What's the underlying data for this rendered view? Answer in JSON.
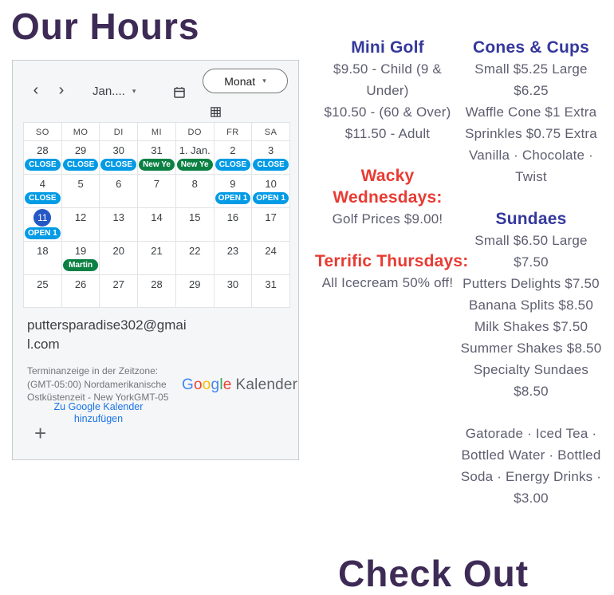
{
  "page": {
    "title": "Our Hours",
    "bottom_heading": "Check Out"
  },
  "colors": {
    "title_color": "#3d2b56",
    "heading_navy": "#34389b",
    "accent_red": "#e83b33",
    "body_text": "#5e5e70",
    "link_blue": "#1a73e8",
    "today_blue": "#2458c5",
    "chip_blue": "#039be5",
    "chip_green": "#0b8043"
  },
  "calendar": {
    "toolbar": {
      "prev_icon": "‹",
      "next_icon": "›",
      "caret_icon": "▾",
      "month_label": "Jan....",
      "view_selector_label": "Monat"
    },
    "day_headers": [
      "SO",
      "MO",
      "DI",
      "MI",
      "DO",
      "FR",
      "SA"
    ],
    "weeks": [
      [
        {
          "date": "28",
          "chip": {
            "text": "CLOSE",
            "color": "blue"
          }
        },
        {
          "date": "29",
          "chip": {
            "text": "CLOSE",
            "color": "blue"
          }
        },
        {
          "date": "30",
          "chip": {
            "text": "CLOSE",
            "color": "blue"
          }
        },
        {
          "date": "31",
          "chip": {
            "text": "New Ye",
            "color": "green"
          }
        },
        {
          "date": "1. Jan.",
          "chip": {
            "text": "New Ye",
            "color": "green"
          }
        },
        {
          "date": "2",
          "chip": {
            "text": "CLOSE",
            "color": "blue"
          }
        },
        {
          "date": "3",
          "chip": {
            "text": "CLOSE",
            "color": "blue"
          }
        }
      ],
      [
        {
          "date": "4",
          "chip": {
            "text": "CLOSE",
            "color": "blue"
          }
        },
        {
          "date": "5"
        },
        {
          "date": "6"
        },
        {
          "date": "7"
        },
        {
          "date": "8"
        },
        {
          "date": "9",
          "chip": {
            "text": "OPEN 1",
            "color": "blue"
          }
        },
        {
          "date": "10",
          "chip": {
            "text": "OPEN 1",
            "color": "blue"
          }
        }
      ],
      [
        {
          "date": "11",
          "today": true,
          "chip": {
            "text": "OPEN 1",
            "color": "blue"
          }
        },
        {
          "date": "12"
        },
        {
          "date": "13"
        },
        {
          "date": "14"
        },
        {
          "date": "15"
        },
        {
          "date": "16"
        },
        {
          "date": "17"
        }
      ],
      [
        {
          "date": "18"
        },
        {
          "date": "19",
          "chip": {
            "text": "Martin",
            "color": "green"
          }
        },
        {
          "date": "20"
        },
        {
          "date": "21"
        },
        {
          "date": "22"
        },
        {
          "date": "23"
        },
        {
          "date": "24"
        }
      ],
      [
        {
          "date": "25"
        },
        {
          "date": "26"
        },
        {
          "date": "27"
        },
        {
          "date": "28"
        },
        {
          "date": "29"
        },
        {
          "date": "30"
        },
        {
          "date": "31"
        }
      ]
    ],
    "footer": {
      "email": "puttersparadise302@gmail.com",
      "timezone_note": "Terminanzeige in der Zeitzone: (GMT-05:00) Nordamerikanische Ostküstenzeit - New YorkGMT-05",
      "add_link": "Zu Google Kalender hinzufügen",
      "logo_letters": [
        {
          "ch": "G",
          "c": "#4285f4"
        },
        {
          "ch": "o",
          "c": "#ea4335"
        },
        {
          "ch": "o",
          "c": "#fbbc05"
        },
        {
          "ch": "g",
          "c": "#4285f4"
        },
        {
          "ch": "l",
          "c": "#34a853"
        },
        {
          "ch": "e",
          "c": "#ea4335"
        }
      ],
      "logo_suffix": "Kalender",
      "plus_icon": "+"
    }
  },
  "menu": {
    "columns": [
      {
        "sections": [
          {
            "style": "navy",
            "title_lines": [
              "Mini Golf"
            ],
            "lines": [
              "$9.50 - Child (9 & Under)",
              "$10.50 - (60 & Over)",
              "$11.50 - Adult"
            ]
          },
          {
            "style": "red",
            "title_lines": [
              "Wacky",
              "Wednesdays:"
            ],
            "lines": [
              "Golf Prices $9.00!"
            ]
          },
          {
            "style": "red",
            "title_lines": [
              "Terrific Thursdays:"
            ],
            "lines": [
              "All Icecream 50% off!"
            ]
          }
        ]
      },
      {
        "sections": [
          {
            "style": "navy",
            "title_lines": [
              "Cones & Cups"
            ],
            "lines": [
              "Small $5.25 Large $6.25",
              "Waffle Cone $1 Extra",
              "Sprinkles $0.75 Extra",
              "Vanilla · Chocolate · Twist"
            ]
          },
          {
            "style": "navy",
            "title_lines": [
              "Sundaes"
            ],
            "lines": [
              "Small $6.50 Large $7.50",
              "Putters Delights $7.50",
              "Banana Splits $8.50",
              "Milk Shakes $7.50",
              "Summer Shakes $8.50",
              "Specialty Sundaes $8.50"
            ]
          },
          {
            "style": "navy",
            "title_lines": [],
            "lines": [
              "Gatorade · Iced Tea · Bottled Water · Bottled Soda · Energy Drinks · $3.00"
            ]
          }
        ]
      }
    ]
  }
}
